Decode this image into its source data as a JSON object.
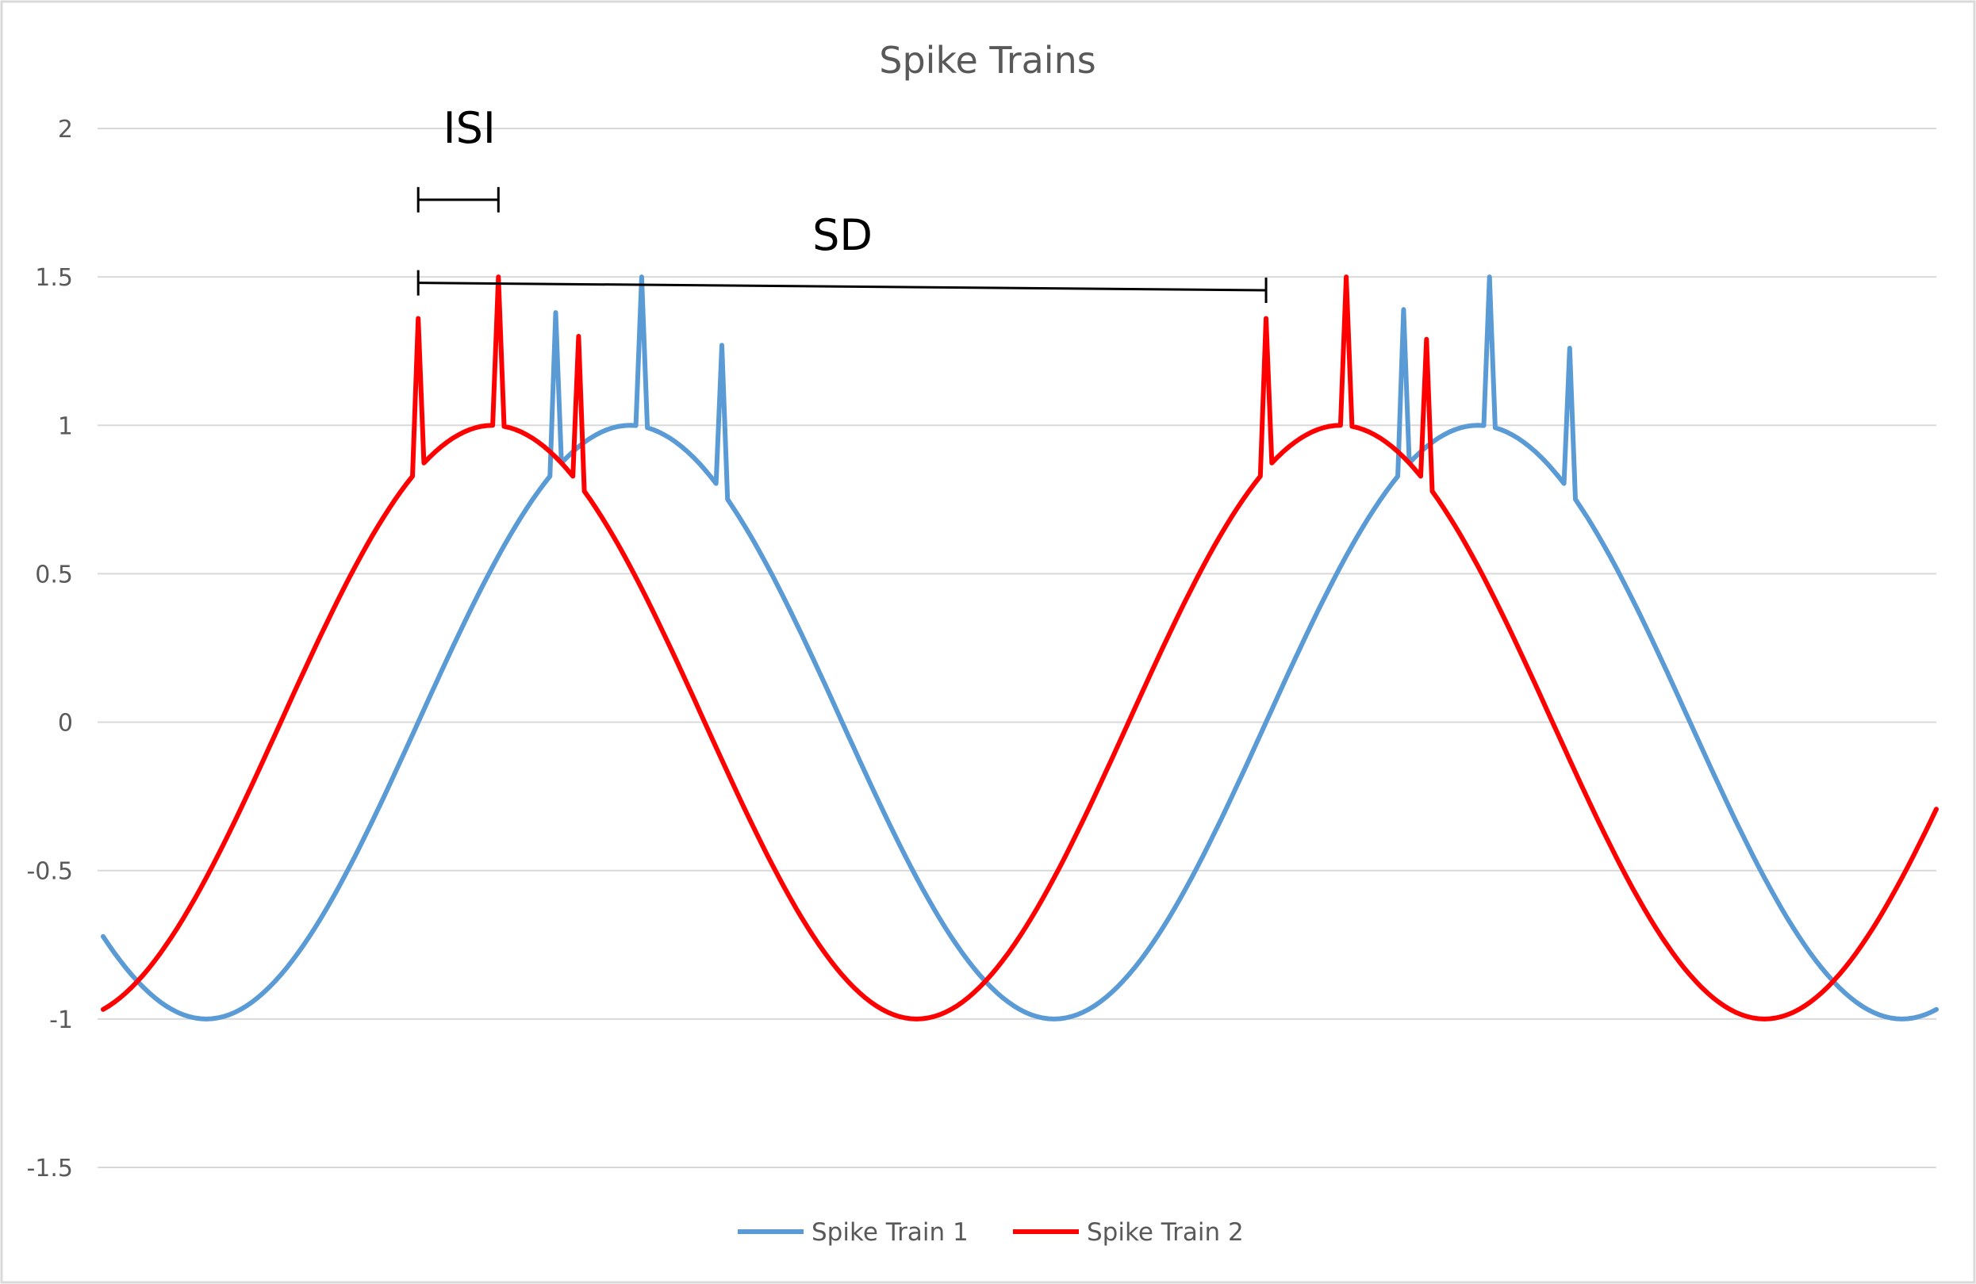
{
  "chart_data": {
    "type": "line",
    "title": "Spike Trains",
    "xlabel": "",
    "ylabel": "",
    "ylim": [
      -1.5,
      2
    ],
    "yticks": [
      2,
      1.5,
      1,
      0.5,
      0,
      -0.5,
      -1,
      -1.5
    ],
    "ytick_labels": [
      "2",
      "1.5",
      "1",
      "0.5",
      "0",
      "-0.5",
      "-1",
      "-1.5"
    ],
    "x_range": [
      0,
      160
    ],
    "grid": true,
    "legend_position": "bottom-center",
    "series": [
      {
        "name": "Spike Train 1",
        "color": "#5b9bd5",
        "period": 74,
        "peak_x": 46,
        "spikes": [
          {
            "x": 39.5,
            "y": 1.38
          },
          {
            "x": 47,
            "y": 1.5
          },
          {
            "x": 54,
            "y": 1.27
          },
          {
            "x": 113.5,
            "y": 1.39
          },
          {
            "x": 121,
            "y": 1.5
          },
          {
            "x": 128,
            "y": 1.26
          }
        ]
      },
      {
        "name": "Spike Train 2",
        "color": "#ff0000",
        "period": 74,
        "peak_x": 34,
        "spikes": [
          {
            "x": 27.5,
            "y": 1.36
          },
          {
            "x": 34.5,
            "y": 1.5
          },
          {
            "x": 41.5,
            "y": 1.3
          },
          {
            "x": 101.5,
            "y": 1.36
          },
          {
            "x": 108.5,
            "y": 1.5
          },
          {
            "x": 115.5,
            "y": 1.29
          }
        ]
      }
    ],
    "annotations": [
      {
        "label": "ISI",
        "x_start": 27.5,
        "x_end": 34.5,
        "y": 1.76
      },
      {
        "label": "SD",
        "x_start": 27.5,
        "x_end": 101.5,
        "y_start": 1.48,
        "y_end": 1.455
      }
    ]
  }
}
